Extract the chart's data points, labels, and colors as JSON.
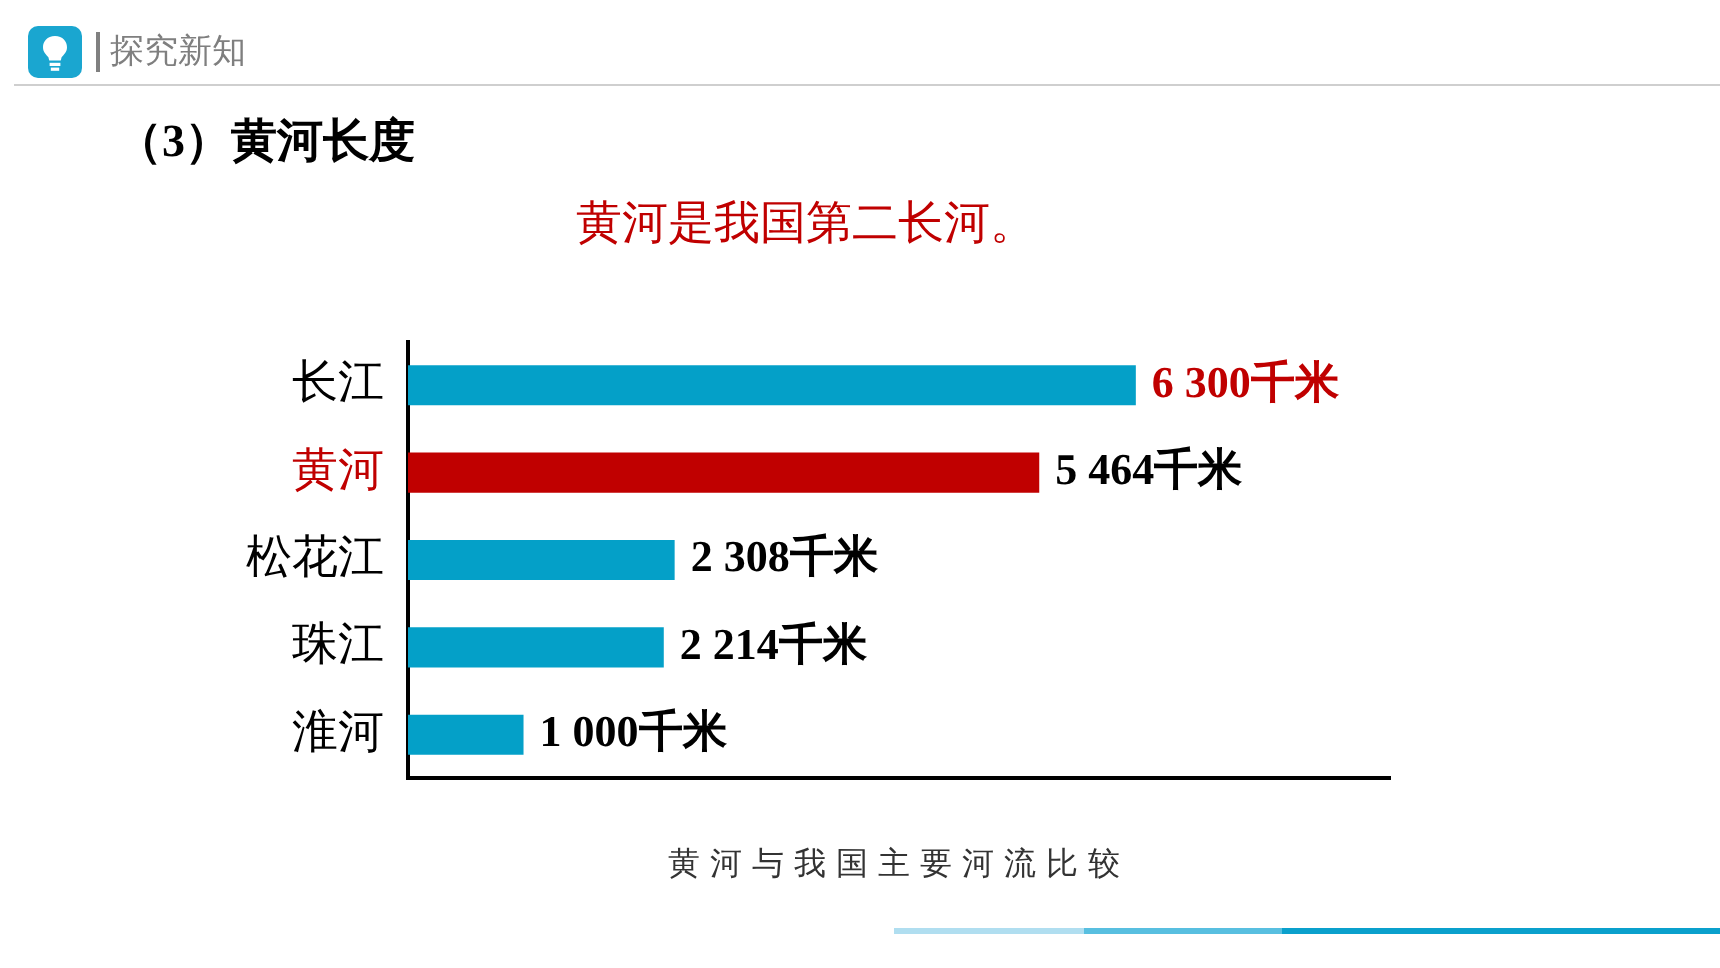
{
  "chart_data": {
    "type": "bar",
    "orientation": "horizontal",
    "title": "（3）黄河长度",
    "subtitle": "黄河是我国第二长河。",
    "annotations": [
      "探究新知",
      "黄河与我国主要河流比较"
    ],
    "categories": [
      "长江",
      "黄河",
      "松花江",
      "珠江",
      "淮河"
    ],
    "values": [
      6300,
      5464,
      2308,
      2214,
      1000
    ],
    "colors": [
      "#04a0c8",
      "#c00000",
      "#04a0c8",
      "#04a0c8",
      "#04a0c8"
    ],
    "value_labels": [
      "6 300千米",
      "5 464千米",
      "2 308千米",
      "2 214千米",
      "1 000千米"
    ],
    "xlim": [
      0,
      8500
    ],
    "tick_labels": "y"
  }
}
